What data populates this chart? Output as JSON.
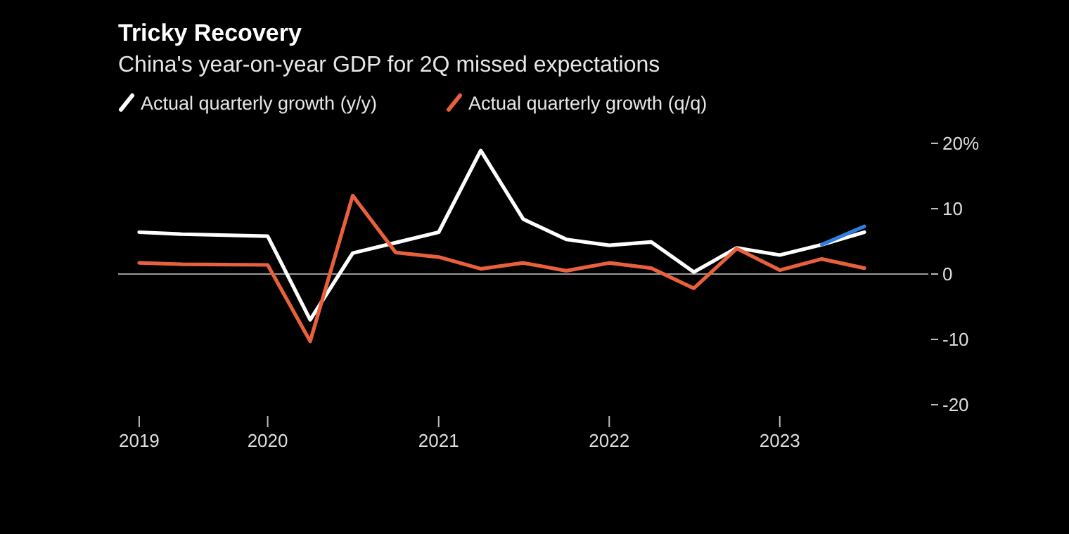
{
  "chart_data": {
    "type": "line",
    "title": "Tricky Recovery",
    "subtitle": "China's year-on-year GDP for 2Q missed expectations",
    "x": [
      "2019-04-01",
      "2019-07-01",
      "2020-01-01",
      "2020-04-01",
      "2020-07-01",
      "2020-10-01",
      "2021-01-01",
      "2021-04-01",
      "2021-07-01",
      "2021-10-01",
      "2022-01-01",
      "2022-04-01",
      "2022-07-01",
      "2022-10-01",
      "2023-01-01",
      "2023-04-01",
      "2023-07-01"
    ],
    "series": [
      {
        "name": "Actual quarterly growth (y/y)",
        "color": "#ffffff",
        "values": [
          6.4,
          6.1,
          5.8,
          -7.0,
          3.2,
          4.8,
          6.4,
          18.9,
          8.4,
          5.3,
          4.4,
          4.9,
          0.3,
          4.0,
          2.9,
          4.5,
          6.4
        ]
      },
      {
        "name": "Actual quarterly growth (q/q)",
        "color": "#e8603c",
        "values": [
          1.7,
          1.5,
          1.4,
          -10.3,
          12.0,
          3.3,
          2.6,
          0.8,
          1.7,
          0.5,
          1.7,
          0.9,
          -2.2,
          3.9,
          0.6,
          2.3,
          0.9
        ]
      },
      {
        "color": "#2e7fe0",
        "x": [
          "2023-04-01",
          "2023-07-01"
        ],
        "values": [
          4.5,
          7.3
        ]
      }
    ],
    "xlim": [
      "2019-02-15",
      "2023-11-15"
    ],
    "xticks": [
      {
        "value": "2019-04-01",
        "label": "2019"
      },
      {
        "value": "2020-01-01",
        "label": "2020"
      },
      {
        "value": "2021-01-01",
        "label": "2021"
      },
      {
        "value": "2022-01-01",
        "label": "2022"
      },
      {
        "value": "2023-01-01",
        "label": "2023"
      }
    ],
    "ylim": [
      -20,
      20
    ],
    "yticks": [
      {
        "value": 20,
        "label": "20%"
      },
      10,
      0,
      -10,
      -20
    ],
    "ref_lines": [
      {
        "axis": "y",
        "value": 0,
        "color": "#9a9a9a"
      }
    ],
    "grid": false,
    "legend": "top left",
    "marker": "none",
    "line_style": "solid"
  }
}
